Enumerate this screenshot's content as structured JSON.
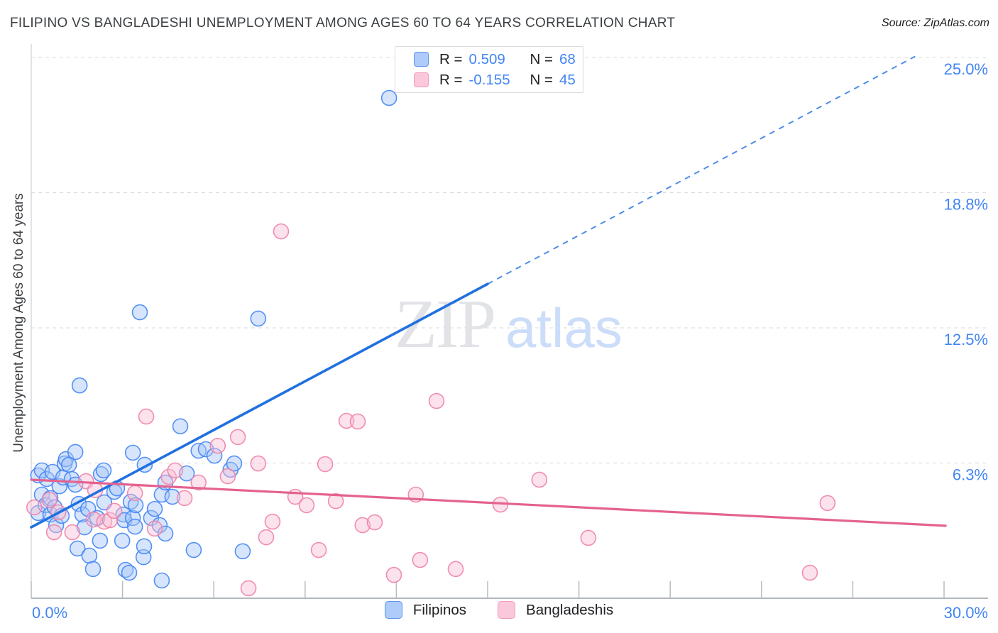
{
  "header": {
    "title": "FILIPINO VS BANGLADESHI UNEMPLOYMENT AMONG AGES 60 TO 64 YEARS CORRELATION CHART",
    "source": "Source: ZipAtlas.com"
  },
  "watermark": {
    "zip": "ZIP",
    "atlas": "atlas"
  },
  "legend_box": {
    "rows": [
      {
        "series": "Filipinos",
        "r_label": "R =",
        "r_value": "0.509",
        "n_label": "N =",
        "n_value": "68"
      },
      {
        "series": "Bangladeshis",
        "r_label": "R =",
        "r_value": "-0.155",
        "n_label": "N =",
        "n_value": "45"
      }
    ]
  },
  "bottom_legend": {
    "items": [
      {
        "label": "Filipinos"
      },
      {
        "label": "Bangladeshis"
      }
    ]
  },
  "colors": {
    "blue_fill": "#A7C6F9",
    "blue_stroke": "#4285F4",
    "blue_trend": "#2070E0",
    "pink_fill": "#F8BED4",
    "pink_stroke": "#EE82A8",
    "pink_trend": "#E4628E",
    "tick_label": "#4285F4",
    "gridline": "#D7D9DD",
    "axis": "#9AA0A6"
  },
  "chart_data": {
    "type": "scatter",
    "title": "FILIPINO VS BANGLADESHI UNEMPLOYMENT AMONG AGES 60 TO 64 YEARS CORRELATION CHART",
    "x_axis": {
      "min": 0,
      "max": 30,
      "tick_step": 3,
      "label_min": "0.0%",
      "label_max": "30.0%",
      "unit": "%"
    },
    "y_axis": {
      "title": "Unemployment Among Ages 60 to 64 years",
      "min": 0,
      "max": 25,
      "unit": "%",
      "gridlines": [
        {
          "value": 25.0,
          "label": "25.0%"
        },
        {
          "value": 18.75,
          "label": "18.8%"
        },
        {
          "value": 12.5,
          "label": "12.5%"
        },
        {
          "value": 6.25,
          "label": "6.3%"
        }
      ]
    },
    "series": [
      {
        "name": "Filipinos",
        "r": 0.509,
        "n": 68,
        "points": [
          [
            0.23,
            5.68
          ],
          [
            0.23,
            3.94
          ],
          [
            0.35,
            4.79
          ],
          [
            0.35,
            5.91
          ],
          [
            0.47,
            4.3
          ],
          [
            0.51,
            5.51
          ],
          [
            0.63,
            4.63
          ],
          [
            0.63,
            3.87
          ],
          [
            0.7,
            5.84
          ],
          [
            0.77,
            4.2
          ],
          [
            0.82,
            3.38
          ],
          [
            0.93,
            5.18
          ],
          [
            1.0,
            3.81
          ],
          [
            1.05,
            5.58
          ],
          [
            1.1,
            6.23
          ],
          [
            1.14,
            6.43
          ],
          [
            1.24,
            6.17
          ],
          [
            1.33,
            5.51
          ],
          [
            1.45,
            5.25
          ],
          [
            1.45,
            6.76
          ],
          [
            1.52,
            2.3
          ],
          [
            1.56,
            4.36
          ],
          [
            1.59,
            9.84
          ],
          [
            1.68,
            3.87
          ],
          [
            1.75,
            3.28
          ],
          [
            1.87,
            4.13
          ],
          [
            1.91,
            1.97
          ],
          [
            2.03,
            1.35
          ],
          [
            2.17,
            3.71
          ],
          [
            2.26,
            2.66
          ],
          [
            2.29,
            5.74
          ],
          [
            2.38,
            5.91
          ],
          [
            2.4,
            4.43
          ],
          [
            2.73,
            4.92
          ],
          [
            2.82,
            5.08
          ],
          [
            2.99,
            2.66
          ],
          [
            3.03,
            3.87
          ],
          [
            3.06,
            3.61
          ],
          [
            3.1,
            1.31
          ],
          [
            3.22,
            1.18
          ],
          [
            3.27,
            4.46
          ],
          [
            3.34,
            3.71
          ],
          [
            3.34,
            6.73
          ],
          [
            3.41,
            3.31
          ],
          [
            3.43,
            4.3
          ],
          [
            3.57,
            13.22
          ],
          [
            3.69,
            1.9
          ],
          [
            3.71,
            2.4
          ],
          [
            3.73,
            6.17
          ],
          [
            3.94,
            3.71
          ],
          [
            4.06,
            4.13
          ],
          [
            4.22,
            3.38
          ],
          [
            4.29,
            4.79
          ],
          [
            4.29,
            0.82
          ],
          [
            4.41,
            5.35
          ],
          [
            4.41,
            2.99
          ],
          [
            4.64,
            4.69
          ],
          [
            4.9,
            7.95
          ],
          [
            5.11,
            5.77
          ],
          [
            5.34,
            2.23
          ],
          [
            5.5,
            6.82
          ],
          [
            5.74,
            6.89
          ],
          [
            6.02,
            6.59
          ],
          [
            6.55,
            5.94
          ],
          [
            6.67,
            6.23
          ],
          [
            6.95,
            2.17
          ],
          [
            7.46,
            12.93
          ],
          [
            11.76,
            23.13
          ]
        ]
      },
      {
        "name": "Bangladeshis",
        "r": -0.155,
        "n": 45,
        "points": [
          [
            0.1,
            4.2
          ],
          [
            0.6,
            4.55
          ],
          [
            0.75,
            3.05
          ],
          [
            0.89,
            3.97
          ],
          [
            1.35,
            3.05
          ],
          [
            1.8,
            5.41
          ],
          [
            2.05,
            3.64
          ],
          [
            2.1,
            5.0
          ],
          [
            2.4,
            3.54
          ],
          [
            2.59,
            3.61
          ],
          [
            2.73,
            4.04
          ],
          [
            3.41,
            4.86
          ],
          [
            3.78,
            8.4
          ],
          [
            4.06,
            3.22
          ],
          [
            4.52,
            5.61
          ],
          [
            4.73,
            5.91
          ],
          [
            5.04,
            4.63
          ],
          [
            5.5,
            5.35
          ],
          [
            6.13,
            7.05
          ],
          [
            6.46,
            5.64
          ],
          [
            6.79,
            7.45
          ],
          [
            7.14,
            0.46
          ],
          [
            7.46,
            6.23
          ],
          [
            7.72,
            2.82
          ],
          [
            7.93,
            3.54
          ],
          [
            8.21,
            16.96
          ],
          [
            8.68,
            4.69
          ],
          [
            9.05,
            4.3
          ],
          [
            9.45,
            2.23
          ],
          [
            9.66,
            6.2
          ],
          [
            10.01,
            4.49
          ],
          [
            10.36,
            8.2
          ],
          [
            10.73,
            8.17
          ],
          [
            10.89,
            3.38
          ],
          [
            11.29,
            3.51
          ],
          [
            11.92,
            1.08
          ],
          [
            12.64,
            4.79
          ],
          [
            12.78,
            1.77
          ],
          [
            13.32,
            9.12
          ],
          [
            13.95,
            1.35
          ],
          [
            15.42,
            4.33
          ],
          [
            16.7,
            5.48
          ],
          [
            18.31,
            2.79
          ],
          [
            25.59,
            1.18
          ],
          [
            26.17,
            4.4
          ]
        ]
      }
    ],
    "trend_lines": [
      {
        "series": "Filipinos",
        "solid": [
          [
            0,
            3.28
          ],
          [
            15,
            14.53
          ]
        ],
        "dashed": [
          [
            15,
            14.53
          ],
          [
            29.05,
            25.05
          ]
        ]
      },
      {
        "series": "Bangladeshis",
        "solid": [
          [
            0,
            5.48
          ],
          [
            30.05,
            3.35
          ]
        ],
        "dashed": null
      }
    ],
    "legend_position": "bottom-center",
    "grid": "horizontal-dashed"
  }
}
